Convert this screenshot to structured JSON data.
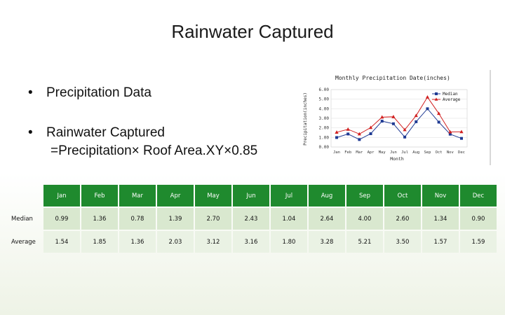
{
  "slide": {
    "title": "Rainwater Captured",
    "bullets": [
      {
        "marker": "•",
        "lines": [
          "Precipitation Data"
        ]
      },
      {
        "marker": "•",
        "lines": [
          "Rainwater Captured",
          "=Precipitation× Roof Area.XY×0.85"
        ]
      }
    ]
  },
  "chart_data": {
    "type": "line",
    "title": "Monthly Precipitation Date(inches)",
    "xlabel": "Month",
    "ylabel": "Precipitation(inches)",
    "categories": [
      "Jan",
      "Feb",
      "Mar",
      "Apr",
      "May",
      "Jun",
      "Jul",
      "Aug",
      "Sep",
      "Oct",
      "Nov",
      "Dec"
    ],
    "ylim": [
      0,
      6
    ],
    "yticks": [
      "0.00",
      "1.00",
      "2.00",
      "3.00",
      "4.00",
      "5.00",
      "6.00"
    ],
    "legend_position": "top-right",
    "series": [
      {
        "name": "Median",
        "color": "#1f3a93",
        "marker": "square",
        "values": [
          0.99,
          1.36,
          0.78,
          1.39,
          2.7,
          2.43,
          1.04,
          2.64,
          4.0,
          2.6,
          1.34,
          0.9
        ]
      },
      {
        "name": "Average",
        "color": "#d11f1f",
        "marker": "triangle",
        "values": [
          1.54,
          1.85,
          1.36,
          2.03,
          3.12,
          3.16,
          1.8,
          3.28,
          5.21,
          3.5,
          1.57,
          1.59
        ]
      }
    ]
  },
  "table": {
    "columns": [
      "Jan",
      "Feb",
      "Mar",
      "Apr",
      "May",
      "Jun",
      "Jul",
      "Aug",
      "Sep",
      "Oct",
      "Nov",
      "Dec"
    ],
    "rows": [
      {
        "label": "Median",
        "values": [
          "0.99",
          "1.36",
          "0.78",
          "1.39",
          "2.70",
          "2.43",
          "1.04",
          "2.64",
          "4.00",
          "2.60",
          "1.34",
          "0.90"
        ]
      },
      {
        "label": "Average",
        "values": [
          "1.54",
          "1.85",
          "1.36",
          "2.03",
          "3.12",
          "3.16",
          "1.80",
          "3.28",
          "5.21",
          "3.50",
          "1.57",
          "1.59"
        ]
      }
    ]
  },
  "colors": {
    "header_green": "#1f8a2e",
    "row_light_1": "#d9e8cf",
    "row_light_2": "#eaf2e4"
  }
}
